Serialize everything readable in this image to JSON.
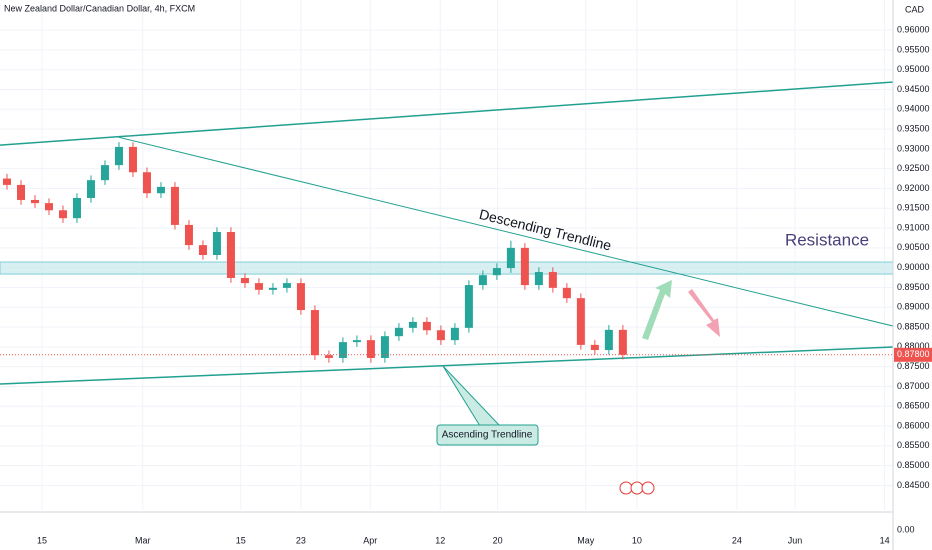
{
  "chart_data": {
    "type": "candlestick",
    "title": "New Zealand Dollar/Canadian Dollar, 4h, FXCM",
    "currency_label": "CAD",
    "lower_pane_label": "0.00",
    "up_color": "#26a69a",
    "down_color": "#ef5350",
    "line_color": "#22a08f",
    "x": [
      1,
      3,
      5,
      7,
      9,
      11,
      13,
      15,
      17,
      19,
      21,
      23,
      25,
      27,
      29,
      31,
      33,
      35,
      37,
      39,
      41,
      43,
      45,
      47,
      49,
      51,
      53,
      55,
      57,
      59,
      61,
      63,
      65,
      67,
      69,
      71,
      73,
      75,
      77,
      79,
      81,
      83,
      85,
      87,
      89
    ],
    "open": [
      0.9225,
      0.9209,
      0.9171,
      0.9163,
      0.9145,
      0.9125,
      0.9176,
      0.9221,
      0.9259,
      0.9305,
      0.9241,
      0.9188,
      0.9204,
      0.9108,
      0.9057,
      0.9032,
      0.909,
      0.8974,
      0.8961,
      0.8944,
      0.8949,
      0.8961,
      0.8893,
      0.8779,
      0.8772,
      0.8812,
      0.8817,
      0.8772,
      0.8827,
      0.8848,
      0.8863,
      0.8842,
      0.8817,
      0.8848,
      0.8956,
      0.8981,
      0.8999,
      0.905,
      0.8956,
      0.8989,
      0.8949,
      0.8923,
      0.8805,
      0.8792,
      0.8843
    ],
    "high": [
      0.9237,
      0.9221,
      0.9183,
      0.9175,
      0.9157,
      0.9188,
      0.9233,
      0.9271,
      0.9317,
      0.9317,
      0.9253,
      0.9216,
      0.9216,
      0.912,
      0.9069,
      0.9102,
      0.9102,
      0.8986,
      0.8973,
      0.8961,
      0.8973,
      0.8973,
      0.8905,
      0.8791,
      0.8824,
      0.8829,
      0.8829,
      0.8839,
      0.886,
      0.8875,
      0.8875,
      0.8854,
      0.886,
      0.8968,
      0.8993,
      0.9011,
      0.9068,
      0.9062,
      0.9001,
      0.9001,
      0.8961,
      0.8935,
      0.8817,
      0.8855,
      0.8855
    ],
    "low": [
      0.9197,
      0.9159,
      0.9151,
      0.9133,
      0.9113,
      0.9113,
      0.9164,
      0.9209,
      0.9247,
      0.9229,
      0.9176,
      0.9176,
      0.9096,
      0.9045,
      0.902,
      0.902,
      0.8962,
      0.8949,
      0.8932,
      0.8932,
      0.8937,
      0.8881,
      0.8767,
      0.876,
      0.876,
      0.88,
      0.876,
      0.876,
      0.8815,
      0.8836,
      0.883,
      0.8805,
      0.8805,
      0.8836,
      0.8944,
      0.8969,
      0.8987,
      0.8944,
      0.8944,
      0.8937,
      0.8911,
      0.8793,
      0.878,
      0.878,
      0.8768
    ],
    "close": [
      0.9209,
      0.9171,
      0.9163,
      0.9145,
      0.9125,
      0.9176,
      0.9221,
      0.9259,
      0.9305,
      0.9241,
      0.9188,
      0.9204,
      0.9108,
      0.9057,
      0.9032,
      0.909,
      0.8974,
      0.8961,
      0.8944,
      0.8949,
      0.8961,
      0.8893,
      0.8779,
      0.8772,
      0.8812,
      0.8817,
      0.8772,
      0.8827,
      0.8848,
      0.8863,
      0.8842,
      0.8817,
      0.8848,
      0.8956,
      0.8981,
      0.8999,
      0.905,
      0.8956,
      0.8989,
      0.8949,
      0.8923,
      0.8805,
      0.8792,
      0.8843,
      0.878
    ],
    "last_price": {
      "value": 0.878,
      "label": "0.87800"
    },
    "xlim": [
      0,
      127.6
    ],
    "xticks": [
      {
        "value": 6,
        "label": "15"
      },
      {
        "value": 20.4,
        "label": "Mar"
      },
      {
        "value": 34.4,
        "label": "15"
      },
      {
        "value": 43,
        "label": "23"
      },
      {
        "value": 52.9,
        "label": "Apr"
      },
      {
        "value": 62.9,
        "label": "12"
      },
      {
        "value": 71.1,
        "label": "20"
      },
      {
        "value": 83.7,
        "label": "May"
      },
      {
        "value": 91,
        "label": "10"
      },
      {
        "value": 105.3,
        "label": "24"
      },
      {
        "value": 113.6,
        "label": "Jun"
      },
      {
        "value": 126.4,
        "label": "14"
      }
    ],
    "ylim": [
      0.8388,
      0.9676
    ],
    "yticks": [
      {
        "value": 0.845,
        "label": "0.84500"
      },
      {
        "value": 0.85,
        "label": "0.85000"
      },
      {
        "value": 0.855,
        "label": "0.85500"
      },
      {
        "value": 0.86,
        "label": "0.86000"
      },
      {
        "value": 0.865,
        "label": "0.86500"
      },
      {
        "value": 0.87,
        "label": "0.87000"
      },
      {
        "value": 0.875,
        "label": "0.87500"
      },
      {
        "value": 0.88,
        "label": "0.88000"
      },
      {
        "value": 0.885,
        "label": "0.88500"
      },
      {
        "value": 0.89,
        "label": "0.89000"
      },
      {
        "value": 0.895,
        "label": "0.89500"
      },
      {
        "value": 0.9,
        "label": "0.90000"
      },
      {
        "value": 0.905,
        "label": "0.90500"
      },
      {
        "value": 0.91,
        "label": "0.91000"
      },
      {
        "value": 0.915,
        "label": "0.91500"
      },
      {
        "value": 0.92,
        "label": "0.92000"
      },
      {
        "value": 0.925,
        "label": "0.92500"
      },
      {
        "value": 0.93,
        "label": "0.93000"
      },
      {
        "value": 0.935,
        "label": "0.93500"
      },
      {
        "value": 0.94,
        "label": "0.94000"
      },
      {
        "value": 0.945,
        "label": "0.94500"
      },
      {
        "value": 0.95,
        "label": "0.95000"
      },
      {
        "value": 0.955,
        "label": "0.95500"
      },
      {
        "value": 0.96,
        "label": "0.96000"
      }
    ],
    "grid": true,
    "trendlines": [
      {
        "x": [
          0,
          127.6
        ],
        "y": [
          0.93096,
          0.94687
        ]
      },
      {
        "x": [
          16.9,
          127.6
        ],
        "y": [
          0.93298,
          0.88526
        ]
      },
      {
        "x": [
          0,
          127.6
        ],
        "y": [
          0.87061,
          0.87996
        ]
      }
    ],
    "zone": {
      "y": [
        0.89839,
        0.90142
      ],
      "color": "#bfe6ea"
    },
    "annotations": [
      "Descending Trendline",
      "Resistance",
      "Ascending Trendline"
    ]
  }
}
